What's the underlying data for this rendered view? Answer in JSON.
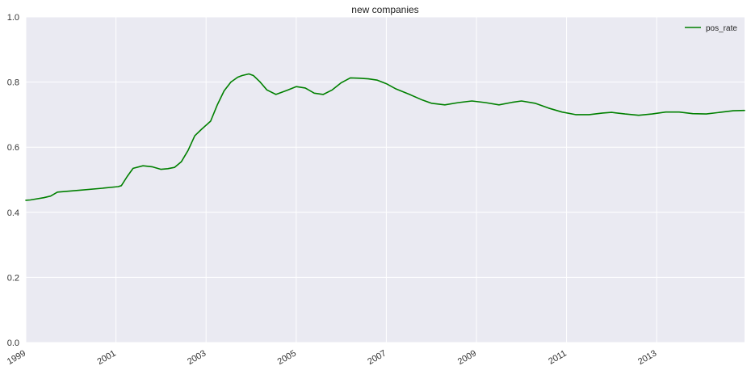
{
  "chart_data": {
    "type": "line",
    "title": "new companies",
    "xlabel": "",
    "ylabel": "",
    "xlim": [
      1999.0,
      2014.95
    ],
    "ylim": [
      0,
      1.0
    ],
    "x_ticks": [
      1999,
      2001,
      2003,
      2005,
      2007,
      2009,
      2011,
      2013
    ],
    "x_tick_labels": [
      "1999",
      "2001",
      "2003",
      "2005",
      "2007",
      "2009",
      "2011",
      "2013"
    ],
    "y_ticks": [
      0.0,
      0.2,
      0.4,
      0.6,
      0.8,
      1.0
    ],
    "y_tick_labels": [
      "0.0",
      "0.2",
      "0.4",
      "0.6",
      "0.8",
      "1.0"
    ],
    "grid": true,
    "legend_position": "top-right",
    "background": "#EAEAF2",
    "grid_color": "#FFFFFF",
    "series": [
      {
        "name": "pos_rate",
        "color": "#008000",
        "x": [
          1999.0,
          1999.1,
          1999.4,
          1999.55,
          1999.7,
          2000.2,
          2000.7,
          2001.05,
          2001.12,
          2001.25,
          2001.38,
          2001.6,
          2001.8,
          2002.0,
          2002.15,
          2002.3,
          2002.45,
          2002.6,
          2002.75,
          2002.9,
          2003.1,
          2003.25,
          2003.4,
          2003.55,
          2003.7,
          2003.8,
          2003.95,
          2004.05,
          2004.2,
          2004.35,
          2004.55,
          2004.8,
          2005.0,
          2005.2,
          2005.4,
          2005.6,
          2005.8,
          2006.0,
          2006.2,
          2006.4,
          2006.6,
          2006.8,
          2007.0,
          2007.2,
          2007.5,
          2007.8,
          2008.0,
          2008.3,
          2008.6,
          2008.9,
          2009.2,
          2009.5,
          2009.8,
          2010.0,
          2010.3,
          2010.6,
          2010.9,
          2011.2,
          2011.5,
          2011.8,
          2012.0,
          2012.3,
          2012.6,
          2012.9,
          2013.2,
          2013.5,
          2013.8,
          2014.1,
          2014.4,
          2014.7,
          2014.95
        ],
        "values": [
          0.437,
          0.438,
          0.445,
          0.45,
          0.462,
          0.468,
          0.474,
          0.479,
          0.482,
          0.51,
          0.535,
          0.543,
          0.54,
          0.532,
          0.534,
          0.538,
          0.555,
          0.59,
          0.635,
          0.655,
          0.68,
          0.73,
          0.773,
          0.8,
          0.815,
          0.82,
          0.825,
          0.82,
          0.8,
          0.776,
          0.762,
          0.775,
          0.786,
          0.782,
          0.766,
          0.762,
          0.776,
          0.798,
          0.813,
          0.812,
          0.81,
          0.806,
          0.795,
          0.78,
          0.763,
          0.745,
          0.735,
          0.73,
          0.737,
          0.742,
          0.737,
          0.73,
          0.738,
          0.742,
          0.735,
          0.72,
          0.708,
          0.7,
          0.7,
          0.705,
          0.707,
          0.702,
          0.698,
          0.702,
          0.708,
          0.708,
          0.703,
          0.702,
          0.707,
          0.712,
          0.713
        ]
      }
    ]
  }
}
